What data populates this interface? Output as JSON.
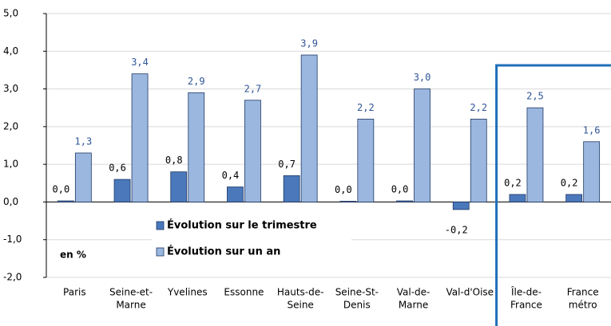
{
  "chart_data": {
    "type": "bar",
    "annotation": "en %",
    "categories": [
      [
        "Paris"
      ],
      [
        "Seine-et-",
        "Marne"
      ],
      [
        "Yvelines"
      ],
      [
        "Essonne"
      ],
      [
        "Hauts-de-",
        "Seine"
      ],
      [
        "Seine-St-",
        "Denis"
      ],
      [
        "Val-de-",
        "Marne"
      ],
      [
        "Val-d'Oise"
      ],
      [
        "Île-de-",
        "France"
      ],
      [
        "France",
        "métro"
      ]
    ],
    "series": [
      {
        "name": "Évolution sur le trimestre",
        "color": "#4a78bb",
        "values": [
          0.03,
          0.6,
          0.8,
          0.4,
          0.7,
          0.02,
          0.03,
          -0.2,
          0.2,
          0.2
        ],
        "value_labels": [
          "0,0",
          "0,6",
          "0,8",
          "0,4",
          "0,7",
          "0,0",
          "0,0",
          "-0,2",
          "0,2",
          "0,2"
        ]
      },
      {
        "name": "Évolution sur un an",
        "color": "#9bb7e0",
        "values": [
          1.3,
          3.4,
          2.9,
          2.7,
          3.9,
          2.2,
          3.0,
          2.2,
          2.5,
          1.6
        ],
        "value_labels": [
          "1,3",
          "3,4",
          "2,9",
          "2,7",
          "3,9",
          "2,2",
          "3,0",
          "2,2",
          "2,5",
          "1,6"
        ]
      }
    ],
    "ylim": [
      -2,
      5
    ],
    "yticks": [
      {
        "value": -2,
        "label": "-2,0"
      },
      {
        "value": -1,
        "label": "-1,0"
      },
      {
        "value": 0,
        "label": "0,0"
      },
      {
        "value": 1,
        "label": "1,0"
      },
      {
        "value": 2,
        "label": "2,0"
      },
      {
        "value": 3,
        "label": "3,0"
      },
      {
        "value": 4,
        "label": "4,0"
      },
      {
        "value": 5,
        "label": "5,0"
      }
    ],
    "grid": true
  }
}
